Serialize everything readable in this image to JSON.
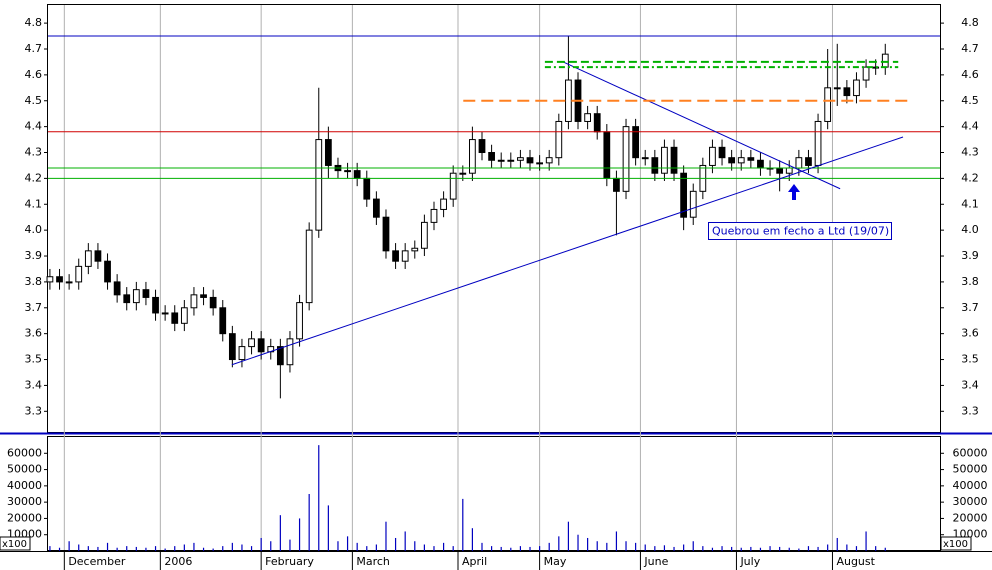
{
  "chart_data": [
    {
      "type": "candlestick",
      "x": [
        0,
        2,
        4,
        6,
        8,
        10,
        12,
        14,
        16,
        18,
        20,
        22,
        24,
        26,
        28,
        30,
        32,
        34,
        36,
        38,
        40,
        42,
        44,
        46,
        48,
        50,
        52,
        54,
        56,
        58,
        60,
        62,
        64,
        66,
        68,
        70,
        72,
        74,
        76,
        78,
        80,
        82,
        84,
        86,
        88,
        90,
        92,
        94,
        96,
        98,
        100,
        102,
        104,
        106,
        108,
        110,
        112,
        114,
        116,
        118,
        120,
        122,
        124,
        126,
        128,
        130,
        132,
        134,
        136,
        138,
        140,
        142,
        144,
        146,
        148,
        150,
        152,
        154,
        156,
        158,
        160,
        162,
        164,
        166,
        168,
        170,
        172,
        174
      ],
      "open": [
        3.8,
        3.82,
        3.8,
        3.8,
        3.86,
        3.92,
        3.88,
        3.8,
        3.75,
        3.72,
        3.77,
        3.74,
        3.68,
        3.68,
        3.64,
        3.7,
        3.75,
        3.74,
        3.7,
        3.6,
        3.5,
        3.55,
        3.58,
        3.53,
        3.55,
        3.48,
        3.58,
        3.72,
        4.0,
        4.35,
        4.25,
        4.23,
        4.23,
        4.2,
        4.12,
        4.05,
        3.92,
        3.88,
        3.92,
        3.93,
        4.03,
        4.08,
        4.12,
        4.22,
        4.22,
        4.35,
        4.3,
        4.27,
        4.27,
        4.27,
        4.28,
        4.26,
        4.26,
        4.28,
        4.42,
        4.58,
        4.42,
        4.45,
        4.38,
        4.2,
        4.15,
        4.4,
        4.28,
        4.28,
        4.22,
        4.32,
        4.22,
        4.05,
        4.15,
        4.25,
        4.32,
        4.28,
        4.26,
        4.28,
        4.27,
        4.24,
        4.24,
        4.22,
        4.24,
        4.28,
        4.25,
        4.42,
        4.55,
        4.55,
        4.52,
        4.58,
        4.63,
        4.63
      ],
      "high": [
        3.85,
        3.85,
        3.83,
        3.89,
        3.95,
        3.95,
        3.91,
        3.83,
        3.78,
        3.8,
        3.8,
        3.77,
        3.71,
        3.71,
        3.73,
        3.78,
        3.78,
        3.77,
        3.73,
        3.63,
        3.58,
        3.61,
        3.61,
        3.58,
        3.58,
        3.61,
        3.75,
        4.03,
        4.55,
        4.4,
        4.28,
        4.26,
        4.26,
        4.23,
        4.15,
        4.08,
        3.95,
        3.95,
        3.96,
        4.06,
        4.11,
        4.15,
        4.25,
        4.25,
        4.4,
        4.38,
        4.33,
        4.3,
        4.3,
        4.31,
        4.31,
        4.29,
        4.31,
        4.45,
        4.75,
        4.61,
        4.48,
        4.48,
        4.41,
        4.23,
        4.43,
        4.43,
        4.31,
        4.31,
        4.35,
        4.35,
        4.25,
        4.18,
        4.28,
        4.35,
        4.35,
        4.31,
        4.31,
        4.31,
        4.3,
        4.27,
        4.27,
        4.27,
        4.31,
        4.31,
        4.45,
        4.7,
        4.72,
        4.58,
        4.61,
        4.66,
        4.66,
        4.72
      ],
      "low": [
        3.77,
        3.77,
        3.77,
        3.77,
        3.83,
        3.85,
        3.77,
        3.72,
        3.69,
        3.69,
        3.71,
        3.65,
        3.65,
        3.61,
        3.61,
        3.67,
        3.71,
        3.67,
        3.57,
        3.47,
        3.47,
        3.52,
        3.5,
        3.5,
        3.35,
        3.45,
        3.55,
        3.69,
        3.97,
        4.2,
        4.2,
        4.2,
        4.17,
        4.09,
        4.02,
        3.89,
        3.85,
        3.85,
        3.89,
        3.9,
        4.0,
        4.05,
        4.09,
        4.19,
        4.19,
        4.27,
        4.24,
        4.24,
        4.24,
        4.24,
        4.23,
        4.23,
        4.23,
        4.25,
        4.39,
        4.39,
        4.39,
        4.35,
        4.17,
        3.98,
        4.12,
        4.25,
        4.25,
        4.19,
        4.19,
        4.19,
        4.0,
        4.02,
        4.12,
        4.22,
        4.25,
        4.23,
        4.23,
        4.24,
        4.21,
        4.21,
        4.15,
        4.19,
        4.21,
        4.22,
        4.22,
        4.39,
        4.48,
        4.49,
        4.49,
        4.55,
        4.6,
        4.6
      ],
      "close": [
        3.82,
        3.8,
        3.8,
        3.86,
        3.92,
        3.88,
        3.8,
        3.75,
        3.72,
        3.77,
        3.74,
        3.68,
        3.68,
        3.64,
        3.7,
        3.75,
        3.74,
        3.7,
        3.6,
        3.5,
        3.55,
        3.58,
        3.53,
        3.55,
        3.48,
        3.58,
        3.72,
        4.0,
        4.35,
        4.25,
        4.23,
        4.23,
        4.2,
        4.12,
        4.05,
        3.92,
        3.88,
        3.92,
        3.93,
        4.03,
        4.08,
        4.12,
        4.22,
        4.22,
        4.35,
        4.3,
        4.27,
        4.27,
        4.27,
        4.28,
        4.26,
        4.26,
        4.28,
        4.42,
        4.58,
        4.42,
        4.45,
        4.38,
        4.2,
        4.15,
        4.4,
        4.28,
        4.28,
        4.22,
        4.32,
        4.22,
        4.05,
        4.15,
        4.25,
        4.32,
        4.28,
        4.26,
        4.28,
        4.27,
        4.24,
        4.24,
        4.22,
        4.24,
        4.28,
        4.25,
        4.42,
        4.55,
        4.55,
        4.52,
        4.58,
        4.63,
        4.63,
        4.68
      ],
      "up_color": "#ffffff",
      "down_color": "#000000",
      "outline_color": "#000000",
      "xlim": [
        -0.4,
        185.4
      ],
      "xticks": [
        {
          "value": 3,
          "label": "December"
        },
        {
          "value": 23,
          "label": "2006"
        },
        {
          "value": 44,
          "label": "February"
        },
        {
          "value": 63,
          "label": "March"
        },
        {
          "value": 85,
          "label": "April"
        },
        {
          "value": 102,
          "label": "May"
        },
        {
          "value": 123,
          "label": "June"
        },
        {
          "value": 143,
          "label": "July"
        },
        {
          "value": 163,
          "label": "August"
        }
      ],
      "ylim": [
        3.22,
        4.87
      ],
      "yticks": [
        3.3,
        3.4,
        3.5,
        3.6,
        3.7,
        3.8,
        3.9,
        {
          "value": 4.0,
          "label": "4.0"
        },
        4.1,
        4.2,
        4.3,
        4.4,
        4.5,
        4.6,
        4.7,
        4.8
      ],
      "grid": "x",
      "hlines": [
        {
          "y": 4.75,
          "color": "#0000c0"
        },
        {
          "y": 4.38,
          "color": "#d00000"
        },
        {
          "y": 4.24,
          "color": "#00b000"
        },
        {
          "y": 4.2,
          "color": "#00b000"
        }
      ],
      "segments": [
        {
          "x": [
            37.9,
            177.7
          ],
          "y": [
            3.48,
            4.36
          ],
          "color": "#0000c0",
          "dash": "none"
        },
        {
          "x": [
            106.9,
            164.6
          ],
          "y": [
            4.65,
            4.16
          ],
          "color": "#0000c0",
          "dash": "none"
        },
        {
          "x": [
            86.1,
            179.2
          ],
          "y": [
            4.5,
            4.5
          ],
          "color": "#ff8020",
          "dash": "12 6"
        },
        {
          "x": [
            103.1,
            176.7
          ],
          "y": [
            4.65,
            4.65
          ],
          "color": "#00b000",
          "dash": "8 4"
        },
        {
          "x": [
            103.1,
            176.7
          ],
          "y": [
            4.63,
            4.63
          ],
          "color": "#00b000",
          "dash": "6 3 2 3"
        }
      ],
      "annotation": "Quebrou em fecho a Ltd (19/07)"
    },
    {
      "type": "bar",
      "values": [
        3000,
        2000,
        6000,
        4000,
        3000,
        2500,
        5000,
        2000,
        3000,
        2500,
        2000,
        3000,
        1500,
        3000,
        4000,
        5000,
        2000,
        1500,
        3000,
        5000,
        4000,
        3000,
        8000,
        6000,
        22000,
        7000,
        20000,
        35000,
        65000,
        28000,
        6000,
        9000,
        5000,
        3000,
        4000,
        18000,
        8000,
        12000,
        6000,
        4000,
        3000,
        5000,
        3000,
        32000,
        14000,
        5000,
        3000,
        2500,
        2000,
        3000,
        2500,
        3000,
        5000,
        9000,
        18000,
        10000,
        8000,
        6000,
        5000,
        12000,
        6000,
        5000,
        4000,
        3000,
        3500,
        2500,
        4000,
        6000,
        3000,
        2000,
        3000,
        2500,
        2000,
        2500,
        2000,
        3000,
        2500,
        2000,
        1500,
        3000,
        2500,
        4000,
        8000,
        4000,
        3000,
        12000,
        3000,
        2000
      ],
      "color": "#0000c0",
      "ylim": [
        0,
        70000
      ],
      "yticks": [
        10000,
        20000,
        30000,
        40000,
        50000,
        60000
      ],
      "unit": "x100"
    }
  ]
}
